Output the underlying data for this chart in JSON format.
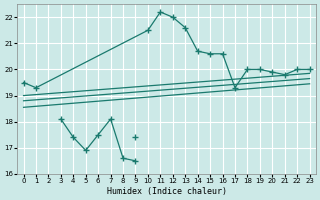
{
  "title": "",
  "xlabel": "Humidex (Indice chaleur)",
  "ylabel": "",
  "bg_color": "#cce9e7",
  "grid_color": "#ffffff",
  "line_color": "#1a7a6e",
  "xlim": [
    -0.5,
    23.5
  ],
  "ylim": [
    16,
    22.5
  ],
  "xticks": [
    0,
    1,
    2,
    3,
    4,
    5,
    6,
    7,
    8,
    9,
    10,
    11,
    12,
    13,
    14,
    15,
    16,
    17,
    18,
    19,
    20,
    21,
    22,
    23
  ],
  "yticks": [
    16,
    17,
    18,
    19,
    20,
    21,
    22
  ],
  "main_line_x": [
    0,
    1,
    10,
    11,
    12,
    13,
    14,
    15,
    16,
    17,
    18,
    19,
    20,
    21,
    22,
    23
  ],
  "main_line_y": [
    19.5,
    19.3,
    21.5,
    22.2,
    22.0,
    21.6,
    20.7,
    20.6,
    20.6,
    19.3,
    20.0,
    20.0,
    19.9,
    19.8,
    20.0,
    20.0
  ],
  "scatter_line_x": [
    3,
    4,
    5,
    6,
    7,
    8,
    9
  ],
  "scatter_line_y": [
    18.1,
    17.4,
    16.9,
    17.5,
    18.1,
    16.6,
    16.5
  ],
  "extra_point_x": [
    9
  ],
  "extra_point_y": [
    17.4
  ],
  "reg_line1_x": [
    0,
    23
  ],
  "reg_line1_y": [
    19.0,
    19.85
  ],
  "reg_line2_x": [
    0,
    23
  ],
  "reg_line2_y": [
    18.8,
    19.65
  ],
  "reg_line3_x": [
    0,
    23
  ],
  "reg_line3_y": [
    18.55,
    19.45
  ]
}
